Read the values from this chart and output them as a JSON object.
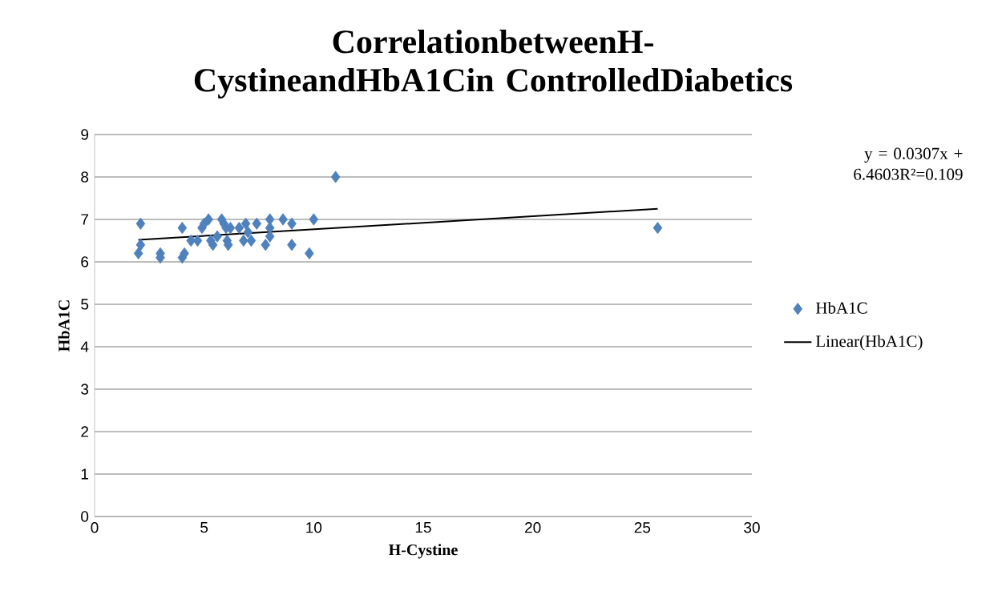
{
  "chart_data": {
    "type": "scatter",
    "title": "CorrelationbetweenH-CystineandHbA1Cin ControlledDiabetics",
    "xlabel": "H-Cystine",
    "ylabel": "HbA1C",
    "annotations": [
      "y = 0.0307x + 6.4603R²=0.109"
    ],
    "xlim": [
      0,
      30
    ],
    "xticks": [
      0,
      5,
      10,
      15,
      20,
      25,
      30
    ],
    "ylim": [
      0,
      9
    ],
    "yticks": [
      0,
      1,
      2,
      3,
      4,
      5,
      6,
      7,
      8,
      9
    ],
    "grid": "y",
    "legend": "right",
    "series": [
      {
        "name": "HbA1C",
        "color": "#4f81bd",
        "marker": "diamond",
        "x": [
          2.1,
          2.1,
          2.0,
          3.0,
          3.0,
          4.0,
          4.0,
          4.1,
          4.4,
          4.7,
          4.9,
          5.0,
          5.2,
          5.3,
          5.4,
          5.6,
          5.8,
          5.9,
          6.0,
          6.05,
          6.1,
          6.2,
          6.6,
          6.9,
          7.0,
          6.8,
          7.15,
          7.4,
          7.8,
          8.0,
          8.0,
          8.0,
          8.6,
          9.0,
          9.0,
          9.8,
          10.0,
          11.0,
          25.7
        ],
        "values": [
          6.9,
          6.4,
          6.2,
          6.2,
          6.1,
          6.8,
          6.1,
          6.2,
          6.5,
          6.5,
          6.8,
          6.9,
          7.0,
          6.5,
          6.4,
          6.6,
          7.0,
          6.9,
          6.8,
          6.5,
          6.4,
          6.8,
          6.8,
          6.9,
          6.7,
          6.5,
          6.5,
          6.9,
          6.4,
          7.0,
          6.8,
          6.6,
          7.0,
          6.9,
          6.4,
          6.2,
          7.0,
          8.0,
          6.8
        ]
      },
      {
        "name": "Linear(HbA1C)",
        "type": "line",
        "color": "#000000",
        "marker": "none",
        "x": [
          2.0,
          25.7
        ],
        "values": [
          6.52,
          7.25
        ]
      }
    ]
  }
}
